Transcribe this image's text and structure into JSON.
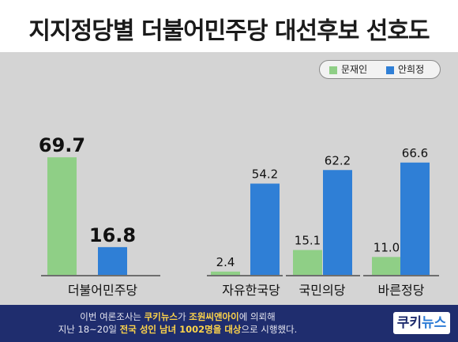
{
  "title": "지지정당별 더불어민주당 대선후보 선호도",
  "colors": {
    "moon": "#8fcf86",
    "ahn": "#2f7fd6",
    "background": "#d4d4d4",
    "navy": "#1f2d6e"
  },
  "chart_data": {
    "type": "bar",
    "title": "지지정당별 더불어민주당 대선후보 선호도",
    "categories": [
      "더불어민주당",
      "자유한국당",
      "국민의당",
      "바른정당"
    ],
    "series": [
      {
        "name": "문재인",
        "values": [
          69.7,
          2.4,
          15.1,
          11.0
        ],
        "labels": [
          "69.7",
          "2.4",
          "15.1",
          "11.0"
        ],
        "color": "#8fcf86"
      },
      {
        "name": "안희정",
        "values": [
          16.8,
          54.2,
          62.2,
          66.6
        ],
        "labels": [
          "16.8",
          "54.2",
          "62.2",
          "66.6"
        ],
        "color": "#2f7fd6"
      }
    ],
    "ylim": [
      0,
      80
    ],
    "legend_position": "top-right",
    "grid": false
  },
  "footer": {
    "line1_a": "이번 여론조사는 ",
    "line1_b": "쿠키뉴스",
    "line1_c": "가 ",
    "line1_d": "조원씨앤아이",
    "line1_e": "에 의뢰해",
    "line2_a": "지난 18~20일 ",
    "line2_b": "전국 성인 남녀 1002명을 대상",
    "line2_c": "으로 시행했다."
  },
  "logo": {
    "part1": "쿠키",
    "part2": "뉴스"
  }
}
